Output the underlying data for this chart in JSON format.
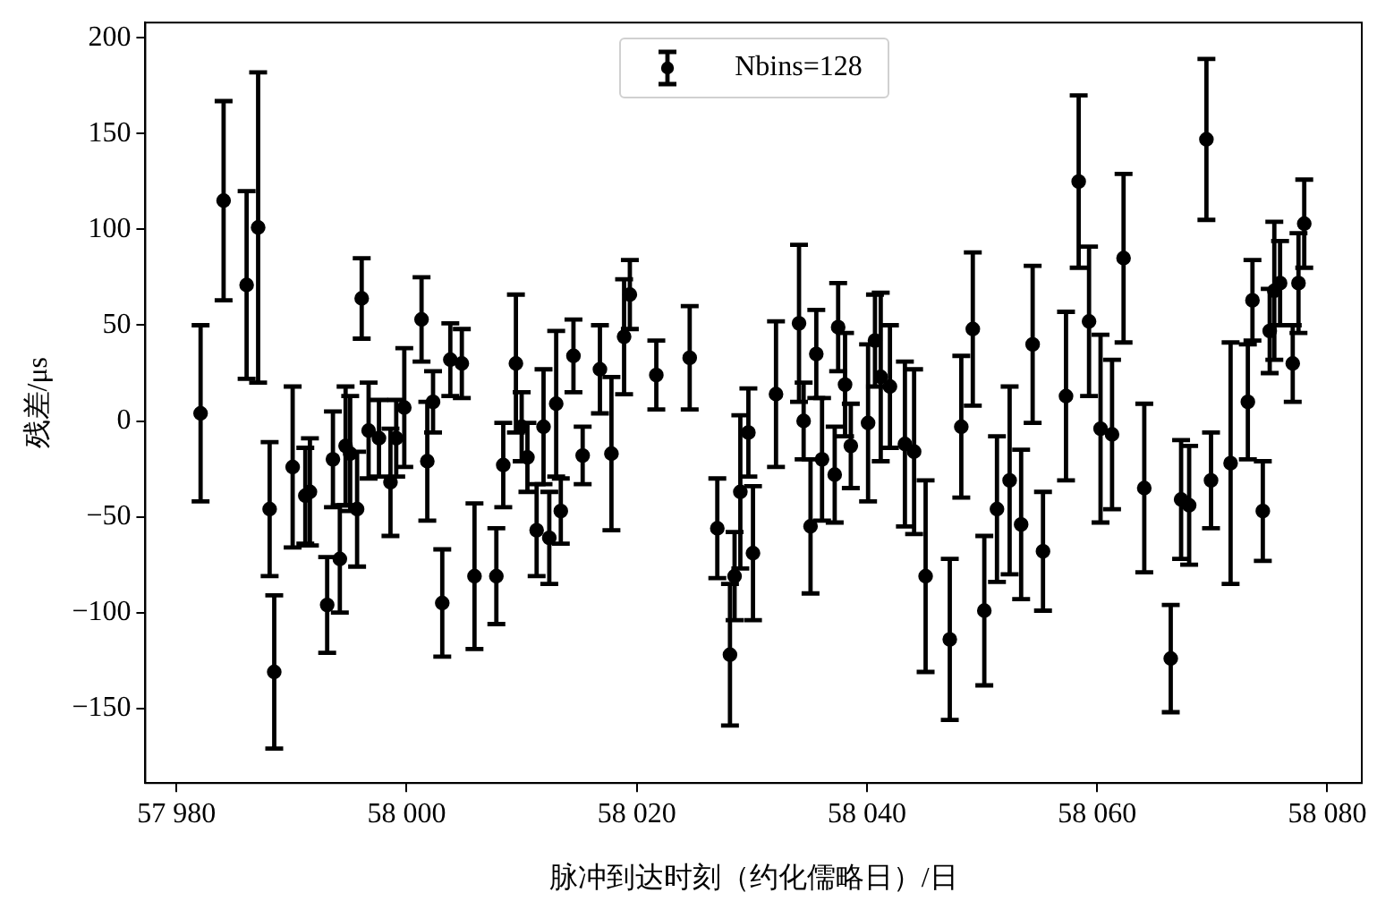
{
  "chart_data": {
    "type": "scatter",
    "xlabel": "脉冲到达时刻（约化儒略日）/日",
    "ylabel": "残差/μs",
    "legend": "top",
    "marker": "circle",
    "grid": false,
    "xlim": [
      57977.3,
      58083
    ],
    "ylim": [
      -189,
      208
    ],
    "xticks": [
      {
        "value": 57980,
        "label": "57 980"
      },
      {
        "value": 58000,
        "label": "58 000"
      },
      {
        "value": 58020,
        "label": "58 020"
      },
      {
        "value": 58040,
        "label": "58 040"
      },
      {
        "value": 58060,
        "label": "58 060"
      },
      {
        "value": 58080,
        "label": "58 080"
      }
    ],
    "yticks": [
      {
        "value": -150,
        "label": "−150"
      },
      {
        "value": -100,
        "label": "−100"
      },
      {
        "value": -50,
        "label": "−50"
      },
      0,
      50,
      100,
      150,
      200
    ],
    "x": [
      57982.1,
      57984.1,
      57986.1,
      57987.1,
      57988.1,
      57988.5,
      57990.1,
      57991.2,
      57991.6,
      57993.1,
      57993.6,
      57994.2,
      57994.7,
      57995.1,
      57995.7,
      57996.1,
      57996.7,
      57997.6,
      57998.6,
      57999.1,
      57999.8,
      58001.3,
      58001.8,
      58002.3,
      58003.1,
      58003.8,
      58004.8,
      58005.9,
      58007.8,
      58008.4,
      58009.5,
      58010.0,
      58010.5,
      58011.3,
      58011.9,
      58012.4,
      58013.0,
      58013.4,
      58014.5,
      58015.3,
      58016.8,
      58017.8,
      58018.9,
      58019.4,
      58021.7,
      58024.6,
      58027.0,
      58028.1,
      58028.5,
      58029.0,
      58029.7,
      58030.1,
      58032.1,
      58034.1,
      58034.5,
      58035.1,
      58035.6,
      58036.1,
      58037.2,
      58037.5,
      58038.1,
      58038.6,
      58040.1,
      58040.7,
      58041.2,
      58042.0,
      58043.3,
      58044.1,
      58045.1,
      58047.2,
      58048.2,
      58049.2,
      58050.2,
      58051.3,
      58052.4,
      58053.4,
      58054.4,
      58055.3,
      58057.3,
      58058.4,
      58059.3,
      58060.3,
      58061.3,
      58062.3,
      58064.1,
      58066.4,
      58067.3,
      58068.0,
      58069.5,
      58069.9,
      58071.6,
      58073.1,
      58073.5,
      58074.4,
      58075.0,
      58075.4,
      58075.9,
      58077.0,
      58077.5,
      58078.0
    ],
    "series": [
      {
        "name": "Nbins=128",
        "color": "#000000",
        "values": [
          4,
          115,
          71,
          101,
          -46,
          -131,
          -24,
          -39,
          -37,
          -96,
          -20,
          -72,
          -13,
          -17,
          -46,
          64,
          -5,
          -9,
          -32,
          -9,
          7,
          53,
          -21,
          10,
          -95,
          32,
          30,
          -81,
          -81,
          -23,
          30,
          -3,
          -19,
          -57,
          -3,
          -61,
          9,
          -47,
          34,
          -18,
          27,
          -17,
          44,
          66,
          24,
          33,
          -56,
          -122,
          -81,
          -37,
          -6,
          -69,
          14,
          51,
          0,
          -55,
          35,
          -20,
          -28,
          49,
          19,
          -13,
          -1,
          42,
          23,
          18,
          -12,
          -16,
          -81,
          -114,
          -3,
          48,
          -99,
          -46,
          -31,
          -54,
          40,
          -68,
          13,
          125,
          52,
          -4,
          -7,
          85,
          -35,
          -124,
          -41,
          -44,
          147,
          -31,
          -22,
          10,
          63,
          -47,
          47,
          68,
          72,
          30,
          72,
          103
        ],
        "errors": [
          46,
          52,
          49,
          81,
          35,
          40,
          42,
          25,
          28,
          25,
          25,
          28,
          31,
          30,
          30,
          21,
          25,
          20,
          28,
          20,
          31,
          22,
          31,
          16,
          28,
          19,
          18,
          38,
          25,
          22,
          36,
          18,
          18,
          24,
          30,
          24,
          38,
          17,
          19,
          15,
          23,
          40,
          30,
          18,
          18,
          27,
          26,
          37,
          23,
          40,
          23,
          35,
          38,
          41,
          20,
          35,
          23,
          32,
          25,
          23,
          27,
          22,
          41,
          24,
          44,
          32,
          43,
          43,
          50,
          42,
          37,
          40,
          39,
          38,
          49,
          39,
          41,
          31,
          44,
          45,
          39,
          49,
          39,
          44,
          44,
          28,
          31,
          31,
          42,
          25,
          63,
          30,
          21,
          26,
          22,
          36,
          22,
          20,
          26,
          23
        ]
      }
    ]
  }
}
